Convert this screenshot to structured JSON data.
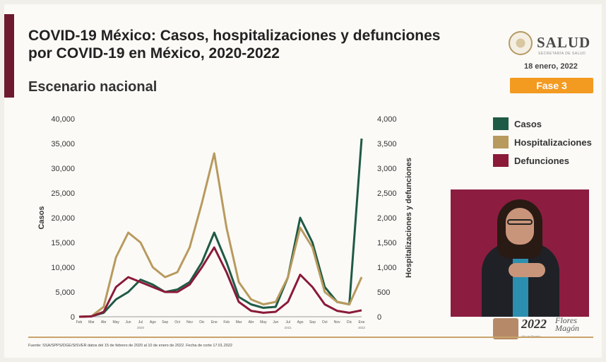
{
  "header": {
    "title": "COVID-19 México: Casos, hospitalizaciones y defunciones por COVID-19 en México, 2020-2022",
    "subtitle": "Escenario nacional"
  },
  "logo": {
    "text": "SALUD",
    "subtext": "SECRETARÍA DE SALUD"
  },
  "date": "18 enero, 2022",
  "badge": {
    "label": "Fase 3",
    "color": "#f39a21"
  },
  "legend": [
    {
      "label": "Casos",
      "color": "#1f5a46"
    },
    {
      "label": "Hospitalizaciones",
      "color": "#b89a5e"
    },
    {
      "label": "Defunciones",
      "color": "#8a1a38"
    }
  ],
  "footer": {
    "source": "Fuente: SSA/SPPS/DGE/SISVER datos del 15 de febrero de 2020 al 10 de enero de 2022. Fecha de corte 17.01.2022",
    "logo_year": "2022",
    "logo_name": "Flores Magón",
    "logo_sub": "Año de Ricardo"
  },
  "chart_data": {
    "type": "line",
    "ylabel_left": "Casos",
    "ylabel_right": "Hospitalizaciones y defunciones",
    "ylim_left": [
      0,
      40000
    ],
    "ylim_right": [
      0,
      4000
    ],
    "yticks_left": [
      "0",
      "5,000",
      "10,000",
      "15,000",
      "20,000",
      "25,000",
      "30,000",
      "35,000",
      "40,000"
    ],
    "yticks_right": [
      "0",
      "500",
      "1,000",
      "1,500",
      "2,000",
      "2,500",
      "3,000",
      "3,500",
      "4,000"
    ],
    "months": [
      "Feb",
      "Mar",
      "Abr",
      "May",
      "Jun",
      "Jul",
      "Ago",
      "Sep",
      "Oct",
      "Nov",
      "Dic",
      "Ene",
      "Feb",
      "Mar",
      "Abr",
      "May",
      "Jun",
      "Jul",
      "Ago",
      "Sep",
      "Oct",
      "Nov",
      "Dic",
      "Ene"
    ],
    "years": [
      "2020",
      "2021",
      "2022"
    ],
    "series": [
      {
        "name": "Casos",
        "axis": "left",
        "color": "#1f5a46",
        "values": [
          0,
          100,
          800,
          3500,
          5000,
          7500,
          6500,
          5000,
          5500,
          7000,
          11000,
          17000,
          11000,
          4000,
          2500,
          1800,
          2000,
          8000,
          20000,
          15000,
          6000,
          3000,
          2500,
          36000
        ]
      },
      {
        "name": "Hospitalizaciones",
        "axis": "right",
        "color": "#b89a5e",
        "values": [
          0,
          10,
          200,
          1200,
          1700,
          1500,
          1000,
          800,
          900,
          1400,
          2300,
          3300,
          1800,
          700,
          350,
          250,
          300,
          800,
          1800,
          1400,
          500,
          300,
          250,
          800
        ]
      },
      {
        "name": "Defunciones",
        "axis": "right",
        "color": "#8a1a38",
        "values": [
          0,
          5,
          100,
          600,
          800,
          700,
          600,
          500,
          500,
          650,
          1000,
          1400,
          900,
          300,
          120,
          80,
          100,
          300,
          850,
          600,
          250,
          120,
          80,
          130
        ]
      }
    ]
  }
}
